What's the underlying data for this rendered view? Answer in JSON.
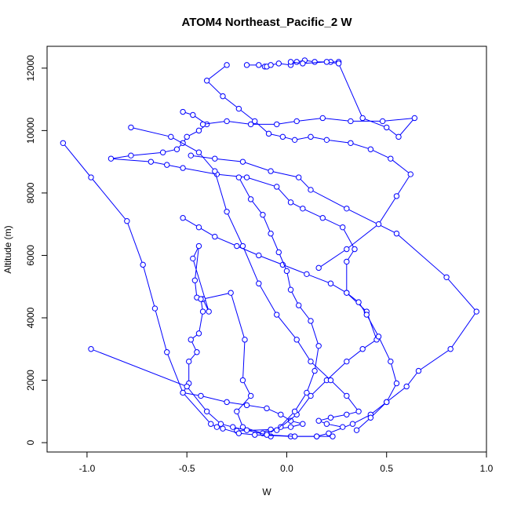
{
  "chart_data": {
    "type": "line",
    "title": "ATOM4 Northeast_Pacific_2 W",
    "xlabel": "W",
    "ylabel": "Altitude (m)",
    "xlim": [
      -1.2,
      1.0
    ],
    "ylim": [
      -300,
      12700
    ],
    "xticks": [
      -1.0,
      -0.5,
      0.0,
      0.5,
      1.0
    ],
    "xtick_labels": [
      "-1.0",
      "-0.5",
      "0.0",
      "0.5",
      "1.0"
    ],
    "yticks": [
      0,
      2000,
      4000,
      6000,
      8000,
      10000,
      12000
    ],
    "ytick_labels": [
      "0",
      "2000",
      "4000",
      "6000",
      "8000",
      "10000",
      "12000"
    ],
    "grid": false,
    "legend": "none",
    "marker": "open-circle",
    "color": "#0000ff",
    "series": [
      {
        "x": [
          -0.08,
          -0.12,
          -0.22,
          -0.25,
          -0.18,
          -0.22,
          -0.21,
          -0.28,
          -0.42,
          -0.39,
          -0.47,
          -0.44,
          -0.46,
          -0.45,
          -0.43,
          -0.42,
          -0.44,
          -0.48,
          -0.45,
          -0.49,
          -0.49,
          -0.52,
          -0.43,
          -0.3,
          -0.2,
          -0.1,
          -0.03,
          0.02,
          0.08,
          0.02,
          -0.08,
          -0.25
        ],
        "y": [
          200,
          300,
          500,
          1000,
          1500,
          2000,
          3300,
          4800,
          4600,
          4200,
          5900,
          6300,
          5200,
          4650,
          4600,
          4200,
          3500,
          3300,
          2900,
          2600,
          1900,
          1600,
          1500,
          1300,
          1200,
          1100,
          900,
          700,
          600,
          500,
          420,
          380
        ]
      },
      {
        "x": [
          -0.1,
          -0.03,
          0.05,
          0.12,
          0.2,
          0.3,
          0.38,
          0.45,
          0.4,
          0.3,
          0.3,
          0.34,
          0.28,
          0.18,
          0.08,
          0.02,
          -0.05,
          -0.2,
          -0.35,
          -0.52,
          -0.6,
          -0.68,
          -0.88,
          -0.78,
          -0.62,
          -0.55,
          -0.52,
          -0.5,
          -0.44,
          -0.4,
          -0.47,
          -0.52
        ],
        "y": [
          300,
          500,
          900,
          1500,
          2000,
          2600,
          3000,
          3300,
          4200,
          4800,
          5800,
          6200,
          6900,
          7200,
          7500,
          7700,
          8200,
          8500,
          8600,
          8800,
          8900,
          9000,
          9100,
          9200,
          9300,
          9400,
          9600,
          9800,
          10000,
          10200,
          10500,
          10600
        ]
      },
      {
        "x": [
          -1.12,
          -0.98,
          -0.8,
          -0.72,
          -0.66,
          -0.6,
          -0.52,
          -0.38,
          -0.35,
          -0.32,
          -0.24,
          -0.16,
          0.02,
          0.15,
          0.23
        ],
        "y": [
          9600,
          8500,
          7100,
          5700,
          4300,
          2900,
          1600,
          600,
          500,
          450,
          300,
          250,
          200,
          200,
          200
        ]
      },
      {
        "x": [
          -0.98,
          -0.5,
          -0.4,
          -0.33,
          -0.27,
          -0.2,
          -0.1,
          0.04,
          0.15,
          0.21,
          0.33,
          0.42,
          0.5,
          0.6,
          0.66,
          0.82,
          0.95,
          0.8,
          0.55,
          0.3,
          0.12,
          0.06,
          -0.08,
          -0.22,
          -0.36,
          -0.48
        ],
        "y": [
          3000,
          1800,
          1000,
          600,
          500,
          400,
          250,
          200,
          200,
          300,
          600,
          900,
          1300,
          1800,
          2300,
          3000,
          4200,
          5300,
          6700,
          7500,
          8100,
          8500,
          8700,
          9000,
          9100,
          9200
        ]
      },
      {
        "x": [
          -0.3,
          -0.4,
          -0.32,
          -0.24,
          -0.16,
          -0.09,
          -0.02,
          0.04,
          0.12,
          0.2,
          0.32,
          0.42,
          0.52,
          0.62,
          0.55,
          0.46,
          0.3,
          0.16
        ],
        "y": [
          12100,
          11600,
          11100,
          10700,
          10300,
          9900,
          9800,
          9700,
          9800,
          9700,
          9600,
          9400,
          9100,
          8600,
          7900,
          7000,
          6200,
          5600
        ]
      },
      {
        "x": [
          -0.2,
          -0.14,
          -0.11,
          -0.1,
          -0.08,
          -0.04,
          0.02,
          0.05,
          0.09,
          0.14,
          0.22,
          0.26
        ],
        "y": [
          12100,
          12100,
          12050,
          12050,
          12100,
          12150,
          12100,
          12200,
          12250,
          12200,
          12200,
          12200
        ]
      },
      {
        "x": [
          0.02,
          0.08,
          0.2,
          0.26,
          0.38,
          0.5,
          0.56,
          0.64,
          0.48,
          0.32,
          0.18,
          0.05,
          -0.05,
          -0.18,
          -0.3,
          -0.42
        ],
        "y": [
          12200,
          12150,
          12200,
          12150,
          10400,
          10100,
          9800,
          10400,
          10300,
          10300,
          10400,
          10300,
          10200,
          10200,
          10300,
          10200
        ]
      },
      {
        "x": [
          -0.78,
          -0.58,
          -0.44,
          -0.36,
          -0.3,
          -0.22,
          -0.14,
          -0.05,
          0.05,
          0.12,
          0.22,
          0.3,
          0.36,
          0.3,
          0.22,
          0.16,
          0.2,
          0.28
        ],
        "y": [
          10100,
          9800,
          9300,
          8700,
          7400,
          6300,
          5100,
          4100,
          3300,
          2600,
          2000,
          1500,
          1000,
          900,
          800,
          700,
          600,
          500
        ]
      },
      {
        "x": [
          0.35,
          0.42,
          0.5,
          0.55,
          0.52,
          0.46,
          0.4,
          0.36,
          0.3,
          0.22,
          0.1,
          -0.02,
          -0.14,
          -0.25,
          -0.36,
          -0.44,
          -0.52
        ],
        "y": [
          400,
          800,
          1300,
          1900,
          2600,
          3400,
          4100,
          4500,
          4800,
          5100,
          5400,
          5700,
          6000,
          6300,
          6600,
          6900,
          7200
        ]
      },
      {
        "x": [
          -0.05,
          0.04,
          0.1,
          0.14,
          0.16,
          0.12,
          0.06,
          0.02,
          0.0,
          -0.04,
          -0.08,
          -0.12,
          -0.18,
          -0.24
        ],
        "y": [
          400,
          1000,
          1600,
          2300,
          3100,
          3900,
          4400,
          4900,
          5500,
          6100,
          6700,
          7300,
          7800,
          8500
        ]
      }
    ]
  }
}
